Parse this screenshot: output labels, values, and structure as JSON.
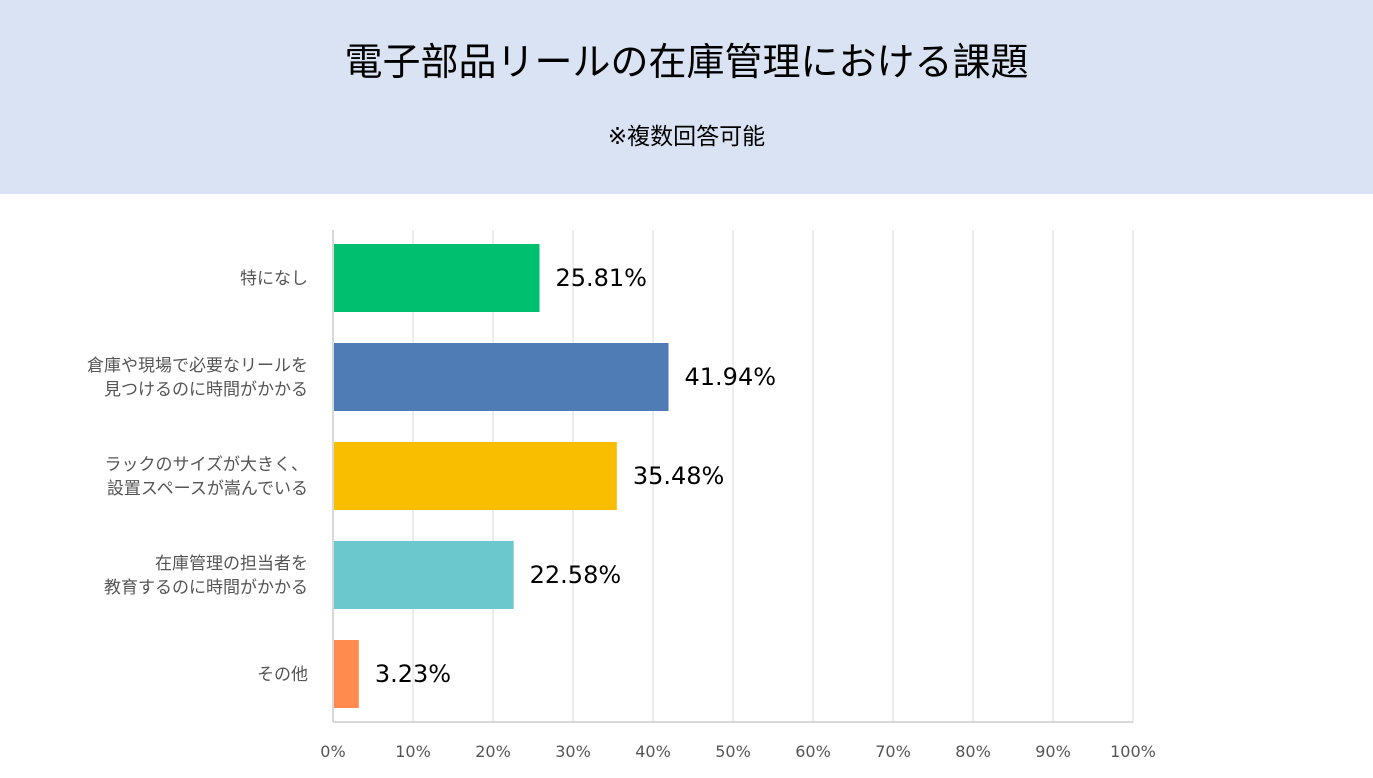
{
  "header": {
    "title": "電子部品リールの在庫管理における課題",
    "subtitle": "※複数回答可能"
  },
  "chart_data": {
    "type": "bar",
    "orientation": "horizontal",
    "categories": [
      [
        "特になし"
      ],
      [
        "倉庫や現場で必要なリールを",
        "見つけるのに時間がかかる"
      ],
      [
        "ラックのサイズが大きく、",
        "設置スペースが嵩んでいる"
      ],
      [
        "在庫管理の担当者を",
        "教育するのに時間がかかる"
      ],
      [
        "その他"
      ]
    ],
    "values": [
      25.81,
      41.94,
      35.48,
      22.58,
      3.23
    ],
    "value_labels": [
      "25.81%",
      "41.94%",
      "35.48%",
      "22.58%",
      "3.23%"
    ],
    "colors": [
      "#00bf6f",
      "#507cb6",
      "#f9be00",
      "#6bc8cd",
      "#ff8b4f"
    ],
    "xlim": [
      0,
      100
    ],
    "xticks": [
      0,
      10,
      20,
      30,
      40,
      50,
      60,
      70,
      80,
      90,
      100
    ],
    "xtick_labels": [
      "0%",
      "10%",
      "20%",
      "30%",
      "40%",
      "50%",
      "60%",
      "70%",
      "80%",
      "90%",
      "100%"
    ],
    "grid": true,
    "legend": "none"
  }
}
